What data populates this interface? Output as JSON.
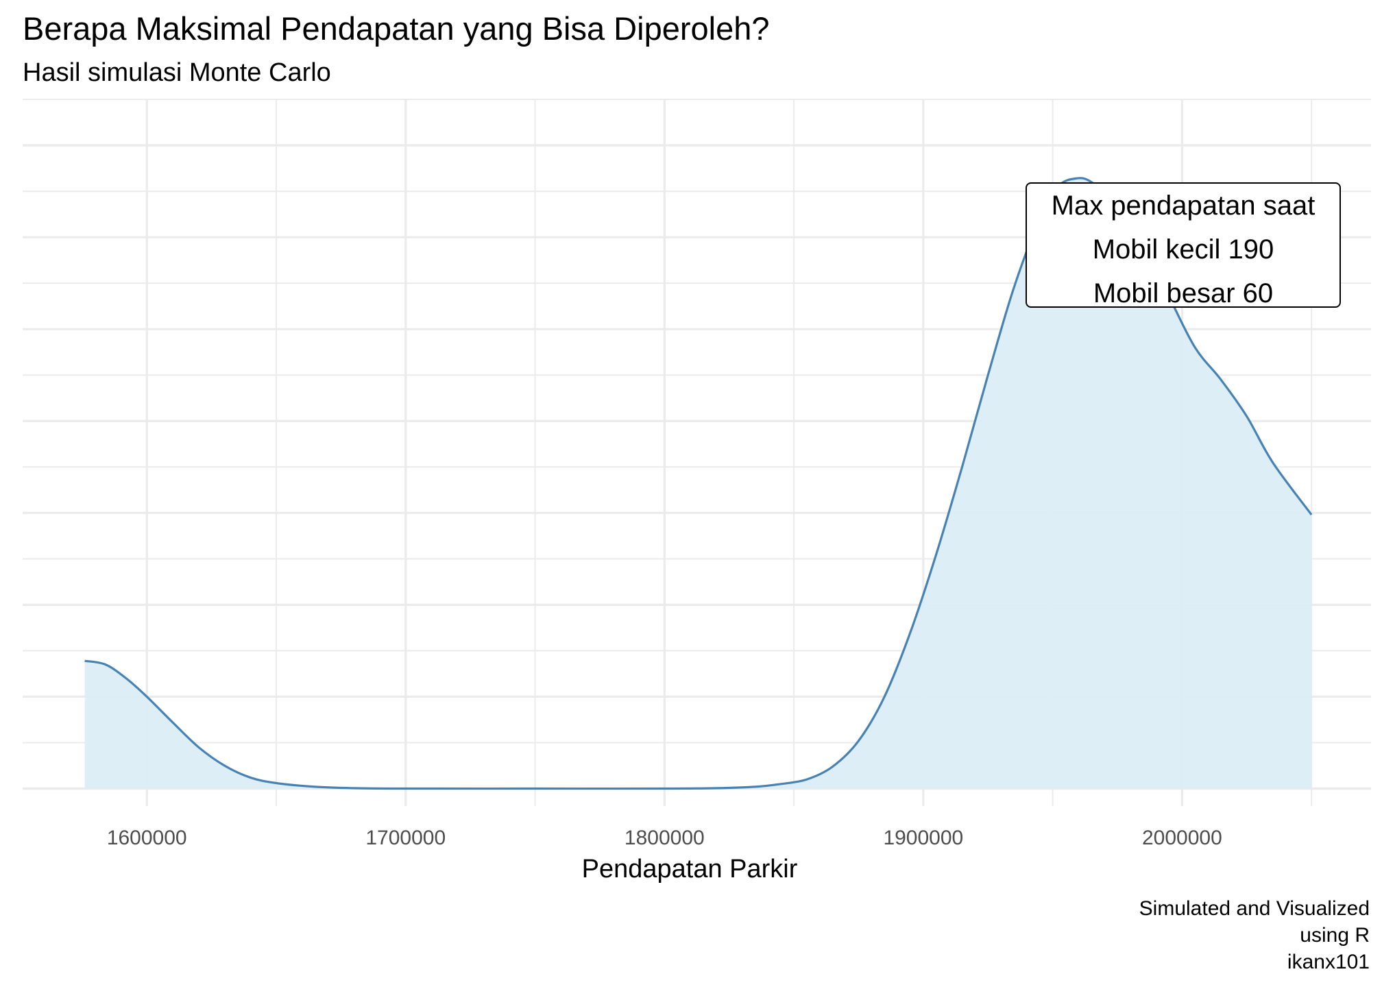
{
  "chart_data": {
    "type": "area",
    "title": "Berapa Maksimal Pendapatan yang Bisa Diperoleh?",
    "subtitle": "Hasil simulasi Monte Carlo",
    "xlabel": "Pendapatan Parkir",
    "ylabel": "",
    "caption": [
      "Simulated and Visualized",
      "using R",
      "ikanx101"
    ],
    "xlim": [
      1552000,
      2073000
    ],
    "ylim": [
      -0.19,
      7.5
    ],
    "x_ticks": [
      1600000,
      1700000,
      1800000,
      1900000,
      2000000
    ],
    "x_tick_labels": [
      "1600000",
      "1700000",
      "1800000",
      "1900000",
      "2000000"
    ],
    "y_gridlines": [
      0,
      1,
      2,
      3,
      4,
      5,
      6,
      7
    ],
    "grid": true,
    "fill_color": "#dcedf5",
    "line_color": "#4682b4",
    "annotation": {
      "lines": [
        "Max pendapatan saat",
        "Mobil kecil 190",
        "Mobil besar 60"
      ],
      "x": 2000000,
      "y": 6.4
    },
    "series": [
      {
        "x": [
          1576000,
          1584000,
          1592000,
          1600000,
          1610000,
          1620000,
          1630000,
          1640000,
          1650000,
          1665000,
          1680000,
          1700000,
          1750000,
          1800000,
          1820000,
          1835000,
          1845000,
          1855000,
          1865000,
          1875000,
          1885000,
          1895000,
          1905000,
          1915000,
          1925000,
          1935000,
          1945000,
          1952000,
          1959000,
          1965000,
          1975000,
          1985000,
          1995000,
          2005000,
          2015000,
          2025000,
          2035000,
          2050000
        ],
        "y": [
          1.39,
          1.35,
          1.2,
          1.0,
          0.72,
          0.45,
          0.25,
          0.12,
          0.06,
          0.02,
          0.005,
          0.0,
          0.0,
          0.0,
          0.005,
          0.02,
          0.05,
          0.1,
          0.24,
          0.52,
          1.0,
          1.7,
          2.55,
          3.5,
          4.5,
          5.45,
          6.2,
          6.55,
          6.64,
          6.6,
          6.35,
          5.9,
          5.35,
          4.8,
          4.45,
          4.05,
          3.55,
          2.98
        ]
      }
    ]
  }
}
